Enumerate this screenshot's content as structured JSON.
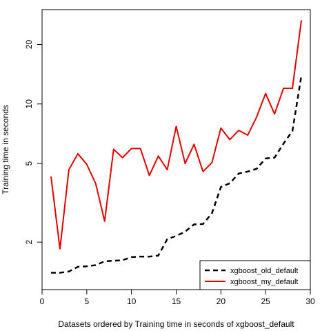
{
  "chart_data": {
    "type": "line",
    "title": "",
    "xlabel": "Datasets ordered by Training time in seconds of xgboost_default",
    "ylabel": "Training time in seconds",
    "xlim": [
      0,
      30
    ],
    "ylim": [
      1.15,
      30
    ],
    "y_scale": "log",
    "x_ticks": [
      0,
      5,
      10,
      15,
      20,
      25,
      30
    ],
    "y_ticks": [
      2,
      5,
      10,
      20
    ],
    "grid": false,
    "legend_position": "bottom-right",
    "series": [
      {
        "name": "xgboost_old_default",
        "color": "#000000",
        "line_style": "dashed",
        "x": [
          1,
          2,
          3,
          4,
          5,
          6,
          7,
          8,
          9,
          10,
          11,
          12,
          13,
          14,
          15,
          16,
          17,
          18,
          19,
          20,
          21,
          22,
          23,
          24,
          25,
          26,
          27,
          28,
          29
        ],
        "values": [
          1.4,
          1.4,
          1.42,
          1.5,
          1.51,
          1.53,
          1.6,
          1.61,
          1.62,
          1.68,
          1.69,
          1.69,
          1.71,
          2.07,
          2.15,
          2.26,
          2.46,
          2.47,
          2.8,
          3.8,
          3.97,
          4.45,
          4.55,
          4.7,
          5.3,
          5.35,
          6.3,
          7.3,
          13.9
        ]
      },
      {
        "name": "xgboost_my_default",
        "color": "#e00000",
        "line_style": "solid",
        "x": [
          1,
          2,
          3,
          4,
          5,
          6,
          7,
          8,
          9,
          10,
          11,
          12,
          13,
          14,
          15,
          16,
          17,
          18,
          19,
          20,
          21,
          22,
          23,
          24,
          25,
          26,
          27,
          28,
          29
        ],
        "values": [
          4.3,
          1.85,
          4.65,
          5.6,
          4.95,
          3.95,
          2.55,
          5.9,
          5.35,
          5.95,
          5.95,
          4.35,
          5.45,
          4.65,
          7.7,
          5.0,
          6.25,
          4.55,
          5.05,
          7.55,
          6.6,
          7.35,
          6.95,
          8.6,
          11.3,
          8.9,
          12.0,
          12.0,
          26.5
        ]
      }
    ]
  }
}
